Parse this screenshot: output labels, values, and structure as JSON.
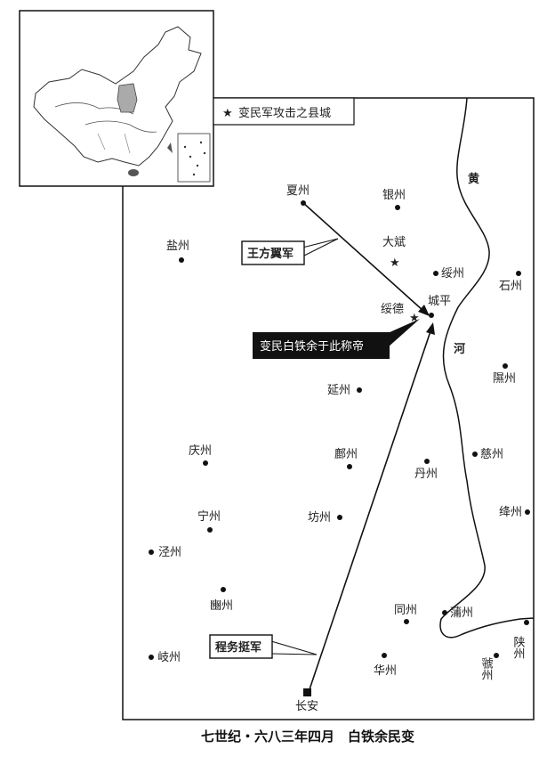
{
  "legend": {
    "symbol": "★",
    "text": "变民军攻击之县城"
  },
  "river": {
    "chars": [
      "黄",
      "河"
    ]
  },
  "armies": {
    "wang": "王方翼军",
    "cheng": "程务挺军"
  },
  "event_label": "变民白铁余于此称帝",
  "cities": {
    "xiazhou": "夏州",
    "yinzhou": "银州",
    "yanzhou": "盐州",
    "dabin": "大斌",
    "suizhou": "绥州",
    "shizhou": "石州",
    "suide": "绥德",
    "chengping": "城平",
    "xizhou": "隰州",
    "yanzhou2": "延州",
    "qingzhou": "庆州",
    "fuzhou": "鄜州",
    "cizhou": "慈州",
    "danzhou": "丹州",
    "ningzhou": "宁州",
    "fangzhou": "坊州",
    "jiangzhou": "绛州",
    "jingzhou": "泾州",
    "binzhou": "豳州",
    "tongzhou": "同州",
    "puzhou": "蒲州",
    "shanzhou": "陕州",
    "qizhou": "岐州",
    "huazhou": "华州",
    "guozhou": "虢州",
    "changan": "长安"
  },
  "caption": "七世纪・六八三年四月　白铁余民变",
  "colors": {
    "ink": "#111111",
    "inset_fill": "#f2f2f2",
    "highlight": "#aaaaaa",
    "event_bg": "#111111"
  }
}
